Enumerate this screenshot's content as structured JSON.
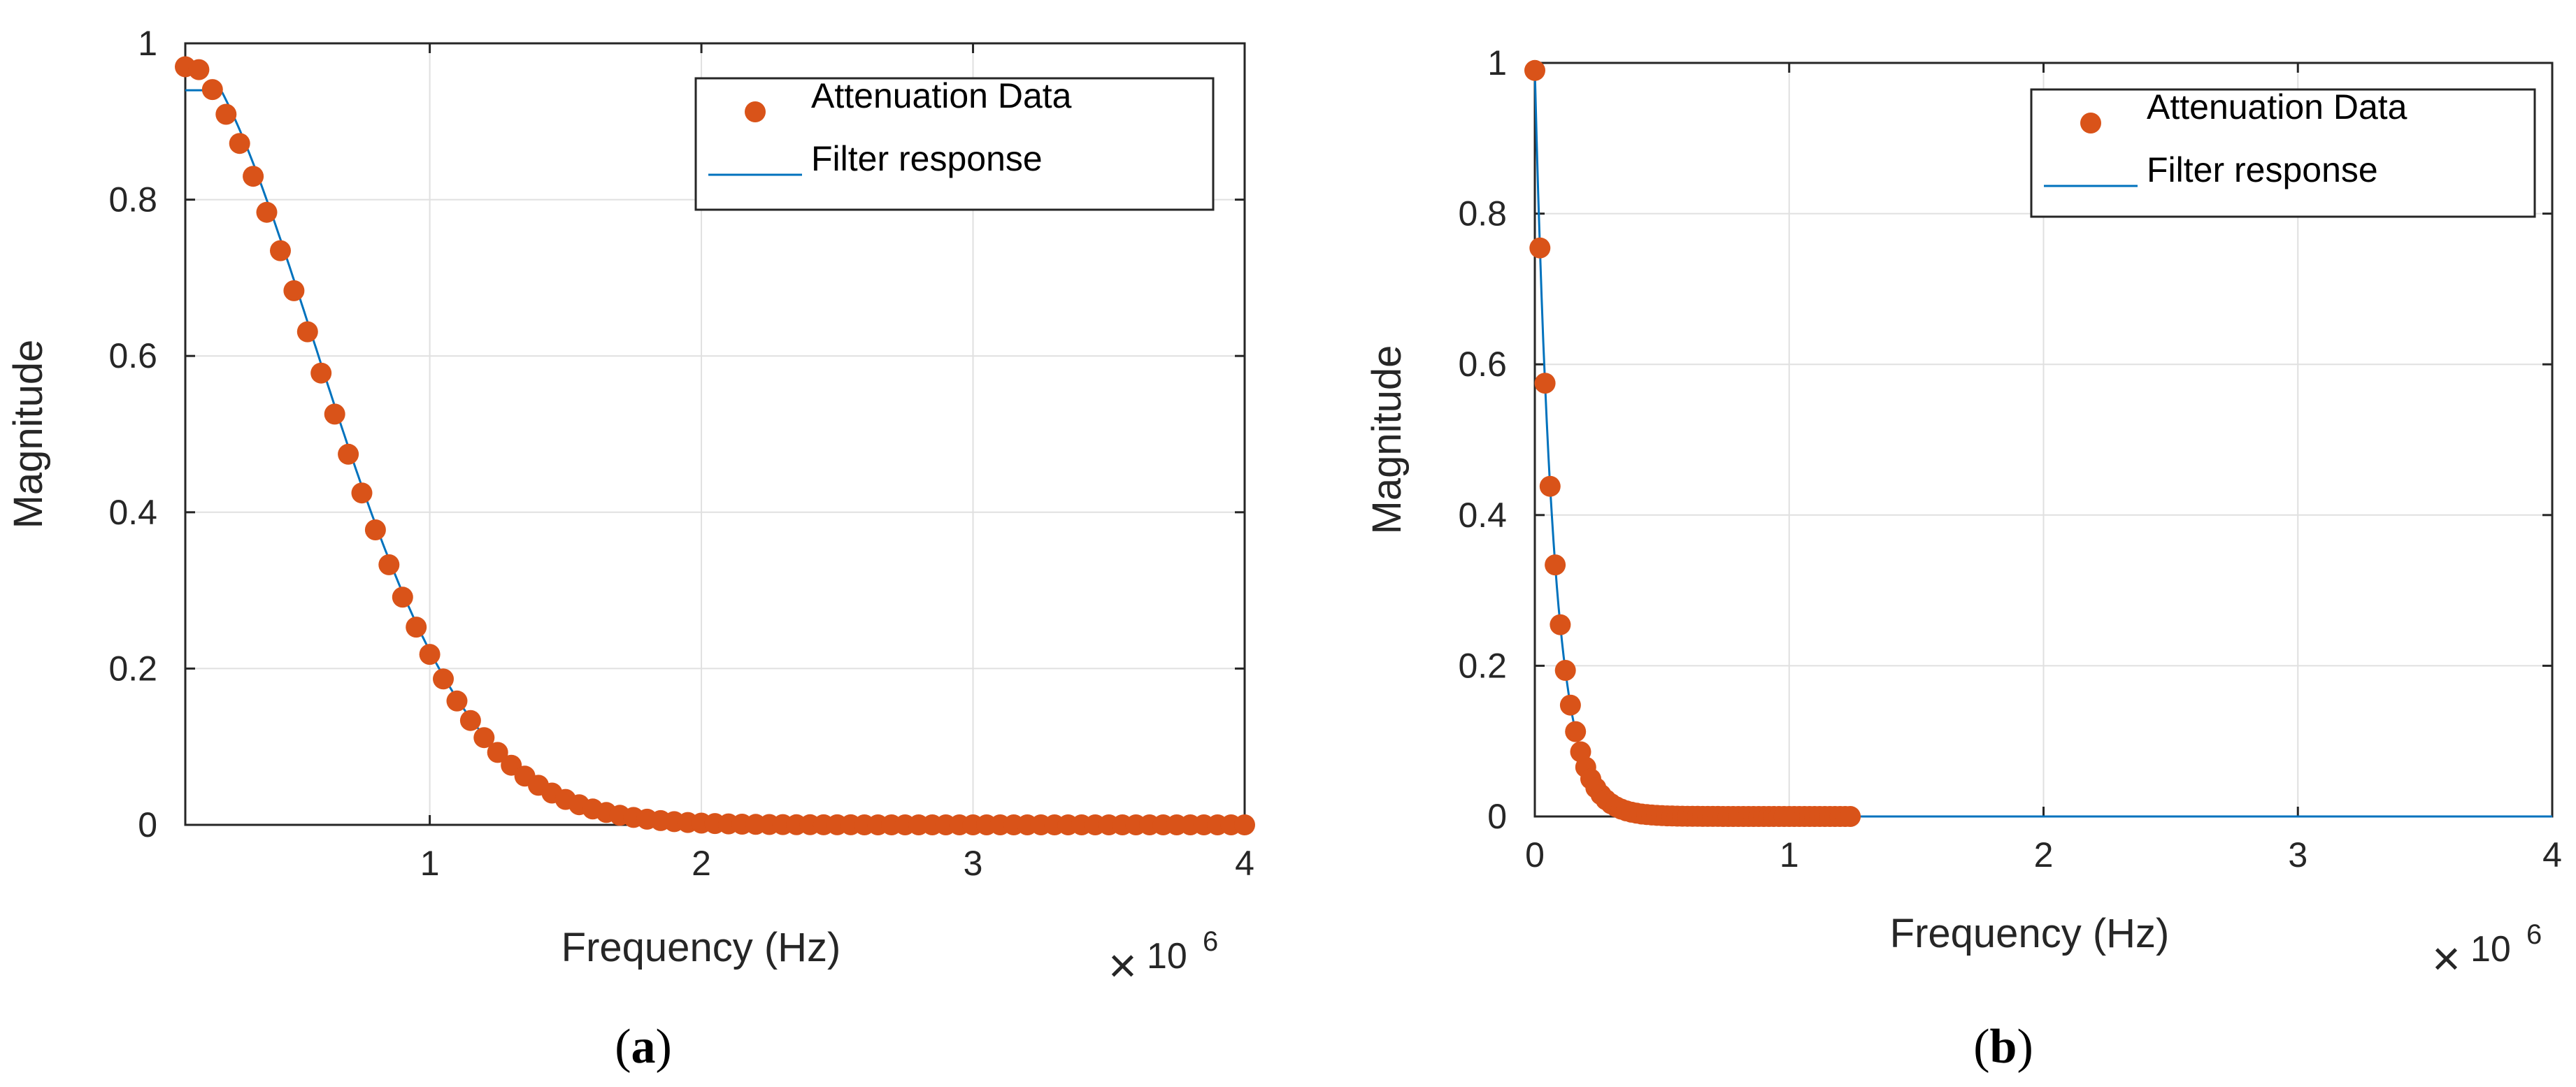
{
  "colors": {
    "marker": "#d95319",
    "line": "#0072bd",
    "grid": "#e0e0e0",
    "axis": "#262626"
  },
  "chart_data": [
    {
      "id": "a",
      "type": "scatter+line",
      "caption": {
        "open": "(",
        "letter": "a",
        "close": ")"
      },
      "xlabel": "Frequency (Hz)",
      "ylabel": "Magnitude",
      "x_multiplier": {
        "base": "10",
        "exponent": "6",
        "symbol": "×"
      },
      "xlim": [
        0.1,
        4.0
      ],
      "ylim": [
        0,
        1
      ],
      "xticks": [
        1,
        2,
        3,
        4
      ],
      "xtick_labels": [
        "1",
        "2",
        "3",
        "4"
      ],
      "yticks": [
        0,
        0.2,
        0.4,
        0.6,
        0.8,
        1
      ],
      "ytick_labels": [
        "0",
        "0.2",
        "0.4",
        "0.6",
        "0.8",
        "1"
      ],
      "grid": true,
      "legend": {
        "position": "top-right",
        "entries": [
          "Attenuation Data",
          "Filter response"
        ]
      },
      "series": [
        {
          "name": "Attenuation Data",
          "kind": "markers",
          "points": {
            "x_start": 0.1,
            "x_step": 0.05,
            "x_end": 4.0,
            "y_at_x0": 0.97,
            "decay_shape": "gaussian-tail",
            "y_at_1": 0.215,
            "y_at_2": 0.01
          }
        },
        {
          "name": "Filter response",
          "kind": "line",
          "points": {
            "x_start": 0.1,
            "x_end": 4.0,
            "y_at_x0": 0.94,
            "decay_shape": "flat-top",
            "y_at_1": 0.21,
            "y_at_2": 0.008
          }
        }
      ]
    },
    {
      "id": "b",
      "type": "scatter+line",
      "caption": {
        "open": "(",
        "letter": "b",
        "close": ")"
      },
      "xlabel": "Frequency (Hz)",
      "ylabel": "Magnitude",
      "x_multiplier": {
        "base": "10",
        "exponent": "6",
        "symbol": "×"
      },
      "xlim": [
        0,
        4.0
      ],
      "ylim": [
        0,
        1
      ],
      "xticks": [
        0,
        1,
        2,
        3,
        4
      ],
      "xtick_labels": [
        "0",
        "1",
        "2",
        "3",
        "4"
      ],
      "yticks": [
        0,
        0.2,
        0.4,
        0.6,
        0.8,
        1
      ],
      "ytick_labels": [
        "0",
        "0.2",
        "0.4",
        "0.6",
        "0.8",
        "1"
      ],
      "grid": true,
      "legend": {
        "position": "top-right",
        "entries": [
          "Attenuation Data",
          "Filter response"
        ]
      },
      "series": [
        {
          "name": "Attenuation Data",
          "kind": "markers",
          "points": {
            "x_start": 0.0,
            "x_step": 0.02,
            "x_end": 1.25,
            "y_at_x0": 0.99,
            "decay_per_unit": 0.0736
          }
        },
        {
          "name": "Filter response",
          "kind": "line",
          "points": {
            "x_start": 0.0,
            "x_end": 4.0,
            "y_at_x0": 0.99,
            "decay_per_unit": 0.0736
          }
        }
      ]
    }
  ]
}
